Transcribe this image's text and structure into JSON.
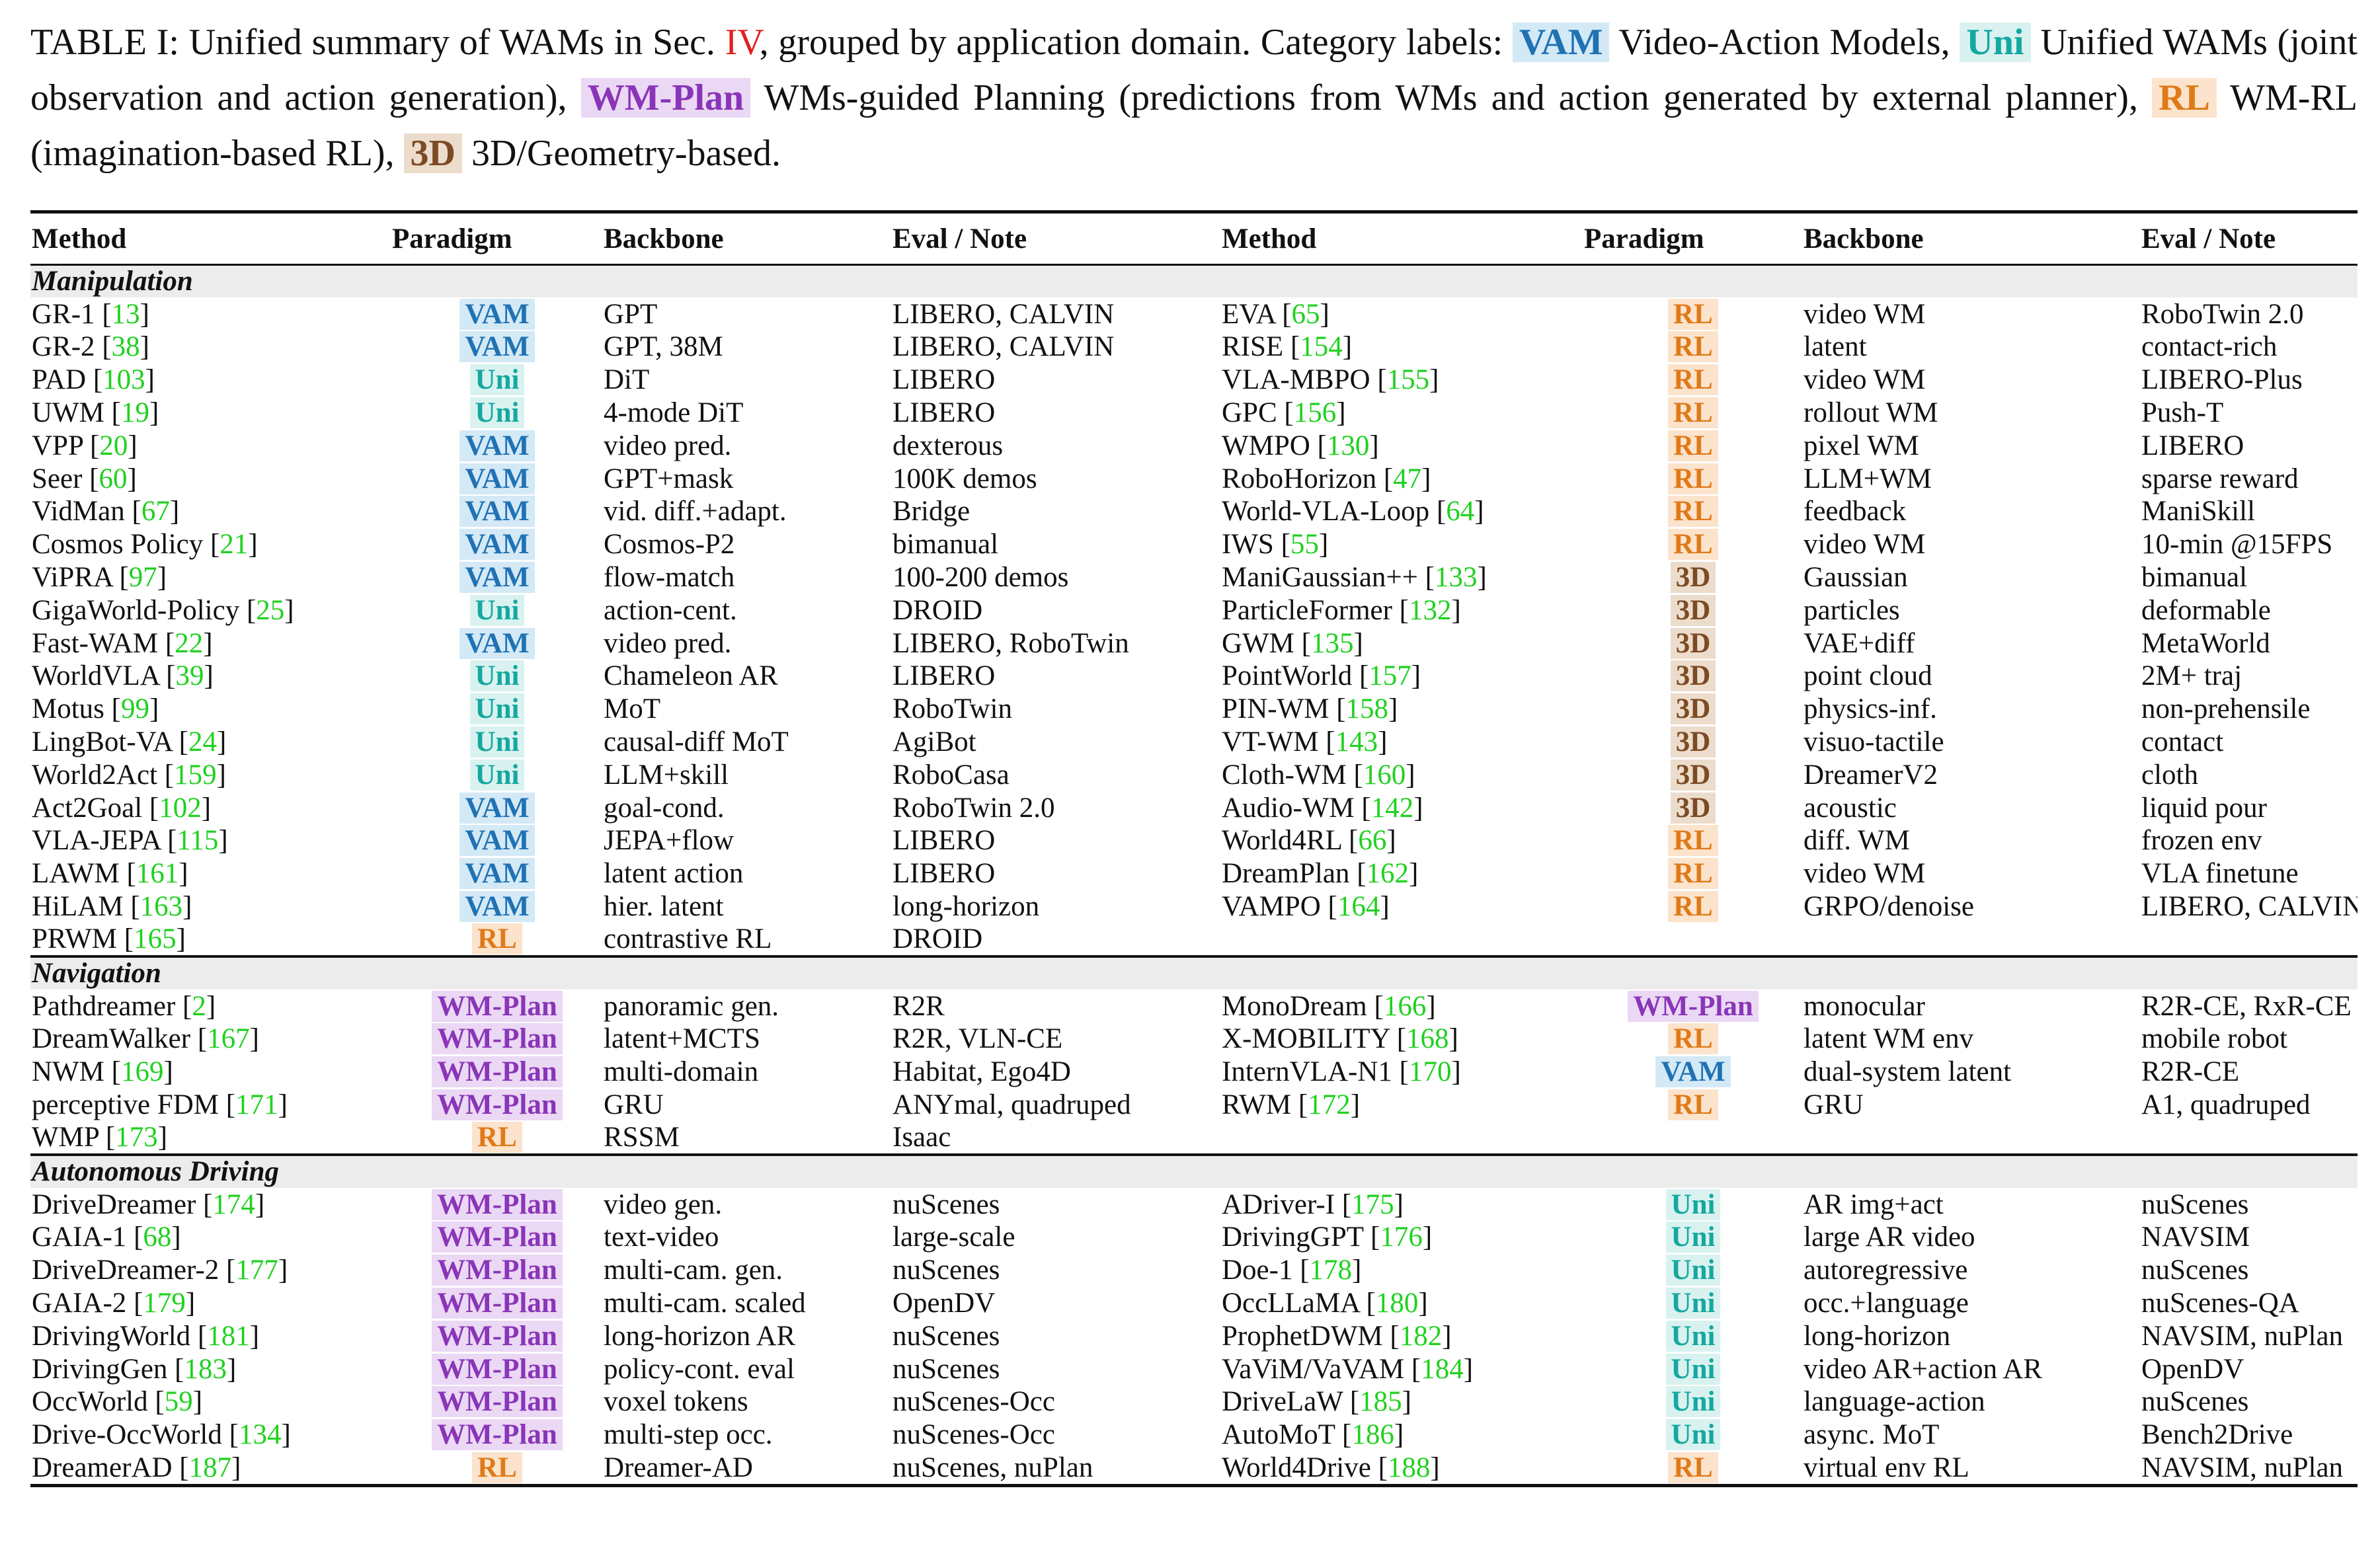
{
  "caption": {
    "t1": "TABLE I: Unified summary of WAMs in Sec. ",
    "ref": "IV",
    "t2": ", grouped by application domain. Category labels: ",
    "vam_label": "VAM",
    "vam_desc": " Video-Action Models, ",
    "uni_label": "Uni",
    "uni_desc": " Unified WAMs (joint observation and action generation), ",
    "wmp_label": "WM-Plan",
    "wmp_desc": " WMs-guided Planning (predictions from WMs and action generated by external planner), ",
    "rl_label": "RL",
    "rl_desc": " WM-RL (imagination-based RL), ",
    "d3_label": "3D",
    "d3_desc": " 3D/Geometry-based."
  },
  "header": [
    "Method",
    "Paradigm",
    "Backbone",
    "Eval / Note",
    "Method",
    "Paradigm",
    "Backbone",
    "Eval / Note"
  ],
  "colors": {
    "VAM": "#1f72b4",
    "Uni": "#15a8a0",
    "WM-Plan": "#8a35b8",
    "RL": "#e07a18",
    "3D": "#7c4a24",
    "citation": "#1fd11f",
    "section_ref": "#e0201c"
  },
  "sections": [
    {
      "title": "Manipulation",
      "rows": [
        [
          [
            "GR-1",
            "13",
            "VAM",
            "GPT",
            "LIBERO, CALVIN"
          ],
          [
            "EVA",
            "65",
            "RL",
            "video WM",
            "RoboTwin 2.0"
          ]
        ],
        [
          [
            "GR-2",
            "38",
            "VAM",
            "GPT, 38M",
            "LIBERO, CALVIN"
          ],
          [
            "RISE",
            "154",
            "RL",
            "latent",
            "contact-rich"
          ]
        ],
        [
          [
            "PAD",
            "103",
            "Uni",
            "DiT",
            "LIBERO"
          ],
          [
            "VLA-MBPO",
            "155",
            "RL",
            "video WM",
            "LIBERO-Plus"
          ]
        ],
        [
          [
            "UWM",
            "19",
            "Uni",
            "4-mode DiT",
            "LIBERO"
          ],
          [
            "GPC",
            "156",
            "RL",
            "rollout WM",
            "Push-T"
          ]
        ],
        [
          [
            "VPP",
            "20",
            "VAM",
            "video pred.",
            "dexterous"
          ],
          [
            "WMPO",
            "130",
            "RL",
            "pixel WM",
            "LIBERO"
          ]
        ],
        [
          [
            "Seer",
            "60",
            "VAM",
            "GPT+mask",
            "100K demos"
          ],
          [
            "RoboHorizon",
            "47",
            "RL",
            "LLM+WM",
            "sparse reward"
          ]
        ],
        [
          [
            "VidMan",
            "67",
            "VAM",
            "vid. diff.+adapt.",
            "Bridge"
          ],
          [
            "World-VLA-Loop",
            "64",
            "RL",
            "feedback",
            "ManiSkill"
          ]
        ],
        [
          [
            "Cosmos Policy",
            "21",
            "VAM",
            "Cosmos-P2",
            "bimanual"
          ],
          [
            "IWS",
            "55",
            "RL",
            "video WM",
            "10-min @15FPS"
          ]
        ],
        [
          [
            "ViPRA",
            "97",
            "VAM",
            "flow-match",
            "100-200 demos"
          ],
          [
            "ManiGaussian++",
            "133",
            "3D",
            "Gaussian",
            "bimanual"
          ]
        ],
        [
          [
            "GigaWorld-Policy",
            "25",
            "Uni",
            "action-cent.",
            "DROID"
          ],
          [
            "ParticleFormer",
            "132",
            "3D",
            "particles",
            "deformable"
          ]
        ],
        [
          [
            "Fast-WAM",
            "22",
            "VAM",
            "video pred.",
            "LIBERO, RoboTwin"
          ],
          [
            "GWM",
            "135",
            "3D",
            "VAE+diff",
            "MetaWorld"
          ]
        ],
        [
          [
            "WorldVLA",
            "39",
            "Uni",
            "Chameleon AR",
            "LIBERO"
          ],
          [
            "PointWorld",
            "157",
            "3D",
            "point cloud",
            "2M+ traj"
          ]
        ],
        [
          [
            "Motus",
            "99",
            "Uni",
            "MoT",
            "RoboTwin"
          ],
          [
            "PIN-WM",
            "158",
            "3D",
            "physics-inf.",
            "non-prehensile"
          ]
        ],
        [
          [
            "LingBot-VA",
            "24",
            "Uni",
            "causal-diff MoT",
            "AgiBot"
          ],
          [
            "VT-WM",
            "143",
            "3D",
            "visuo-tactile",
            "contact"
          ]
        ],
        [
          [
            "World2Act",
            "159",
            "Uni",
            "LLM+skill",
            "RoboCasa"
          ],
          [
            "Cloth-WM",
            "160",
            "3D",
            "DreamerV2",
            "cloth"
          ]
        ],
        [
          [
            "Act2Goal",
            "102",
            "VAM",
            "goal-cond.",
            "RoboTwin 2.0"
          ],
          [
            "Audio-WM",
            "142",
            "3D",
            "acoustic",
            "liquid pour"
          ]
        ],
        [
          [
            "VLA-JEPA",
            "115",
            "VAM",
            "JEPA+flow",
            "LIBERO"
          ],
          [
            "World4RL",
            "66",
            "RL",
            "diff. WM",
            "frozen env"
          ]
        ],
        [
          [
            "LAWM",
            "161",
            "VAM",
            "latent action",
            "LIBERO"
          ],
          [
            "DreamPlan",
            "162",
            "RL",
            "video WM",
            "VLA finetune"
          ]
        ],
        [
          [
            "HiLAM",
            "163",
            "VAM",
            "hier. latent",
            "long-horizon"
          ],
          [
            "VAMPO",
            "164",
            "RL",
            "GRPO/denoise",
            "LIBERO, CALVIN"
          ]
        ],
        [
          [
            "PRWM",
            "165",
            "RL",
            "contrastive RL",
            "DROID"
          ],
          null
        ]
      ]
    },
    {
      "title": "Navigation",
      "rows": [
        [
          [
            "Pathdreamer",
            "2",
            "WM-Plan",
            "panoramic gen.",
            "R2R"
          ],
          [
            "MonoDream",
            "166",
            "WM-Plan",
            "monocular",
            "R2R-CE, RxR-CE"
          ]
        ],
        [
          [
            "DreamWalker",
            "167",
            "WM-Plan",
            "latent+MCTS",
            "R2R, VLN-CE"
          ],
          [
            "X-MOBILITY",
            "168",
            "RL",
            "latent WM env",
            "mobile robot"
          ]
        ],
        [
          [
            "NWM",
            "169",
            "WM-Plan",
            "multi-domain",
            "Habitat, Ego4D"
          ],
          [
            "InternVLA-N1",
            "170",
            "VAM",
            "dual-system latent",
            "R2R-CE"
          ]
        ],
        [
          [
            "perceptive FDM",
            "171",
            "WM-Plan",
            "GRU",
            "ANYmal, quadruped"
          ],
          [
            "RWM",
            "172",
            "RL",
            "GRU",
            "A1, quadruped"
          ]
        ],
        [
          [
            "WMP",
            "173",
            "RL",
            "RSSM",
            "Isaac"
          ],
          null
        ]
      ]
    },
    {
      "title": "Autonomous Driving",
      "rows": [
        [
          [
            "DriveDreamer",
            "174",
            "WM-Plan",
            "video gen.",
            "nuScenes"
          ],
          [
            "ADriver-I",
            "175",
            "Uni",
            "AR img+act",
            "nuScenes"
          ]
        ],
        [
          [
            "GAIA-1",
            "68",
            "WM-Plan",
            "text-video",
            "large-scale"
          ],
          [
            "DrivingGPT",
            "176",
            "Uni",
            "large AR video",
            "NAVSIM"
          ]
        ],
        [
          [
            "DriveDreamer-2",
            "177",
            "WM-Plan",
            "multi-cam. gen.",
            "nuScenes"
          ],
          [
            "Doe-1",
            "178",
            "Uni",
            "autoregressive",
            "nuScenes"
          ]
        ],
        [
          [
            "GAIA-2",
            "179",
            "WM-Plan",
            "multi-cam. scaled",
            "OpenDV"
          ],
          [
            "OccLLaMA",
            "180",
            "Uni",
            "occ.+language",
            "nuScenes-QA"
          ]
        ],
        [
          [
            "DrivingWorld",
            "181",
            "WM-Plan",
            "long-horizon AR",
            "nuScenes"
          ],
          [
            "ProphetDWM",
            "182",
            "Uni",
            "long-horizon",
            "NAVSIM, nuPlan"
          ]
        ],
        [
          [
            "DrivingGen",
            "183",
            "WM-Plan",
            "policy-cont. eval",
            "nuScenes"
          ],
          [
            "VaViM/VaVAM",
            "184",
            "Uni",
            "video AR+action AR",
            "OpenDV"
          ]
        ],
        [
          [
            "OccWorld",
            "59",
            "WM-Plan",
            "voxel tokens",
            "nuScenes-Occ"
          ],
          [
            "DriveLaW",
            "185",
            "Uni",
            "language-action",
            "nuScenes"
          ]
        ],
        [
          [
            "Drive-OccWorld",
            "134",
            "WM-Plan",
            "multi-step occ.",
            "nuScenes-Occ"
          ],
          [
            "AutoMoT",
            "186",
            "Uni",
            "async. MoT",
            "Bench2Drive"
          ]
        ],
        [
          [
            "DreamerAD",
            "187",
            "RL",
            "Dreamer-AD",
            "nuScenes, nuPlan"
          ],
          [
            "World4Drive",
            "188",
            "RL",
            "virtual env RL",
            "NAVSIM, nuPlan"
          ]
        ]
      ]
    }
  ]
}
